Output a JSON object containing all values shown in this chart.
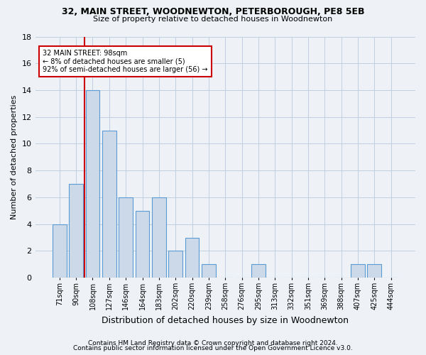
{
  "title_line1": "32, MAIN STREET, WOODNEWTON, PETERBOROUGH, PE8 5EB",
  "title_line2": "Size of property relative to detached houses in Woodnewton",
  "xlabel": "Distribution of detached houses by size in Woodnewton",
  "ylabel": "Number of detached properties",
  "categories": [
    "71sqm",
    "90sqm",
    "108sqm",
    "127sqm",
    "146sqm",
    "164sqm",
    "183sqm",
    "202sqm",
    "220sqm",
    "239sqm",
    "258sqm",
    "276sqm",
    "295sqm",
    "313sqm",
    "332sqm",
    "351sqm",
    "369sqm",
    "388sqm",
    "407sqm",
    "425sqm",
    "444sqm"
  ],
  "values": [
    4,
    7,
    14,
    11,
    6,
    5,
    6,
    2,
    3,
    1,
    0,
    0,
    1,
    0,
    0,
    0,
    0,
    0,
    1,
    1,
    0
  ],
  "bar_color": "#ccd9e8",
  "bar_edgecolor": "#5b9bd5",
  "annotation_line1": "32 MAIN STREET: 98sqm",
  "annotation_line2": "← 8% of detached houses are smaller (5)",
  "annotation_line3": "92% of semi-detached houses are larger (56) →",
  "annotation_box_color": "white",
  "annotation_box_edgecolor": "#cc0000",
  "vline_color": "#cc0000",
  "vline_x": 2,
  "ylim": [
    0,
    18
  ],
  "yticks": [
    0,
    2,
    4,
    6,
    8,
    10,
    12,
    14,
    16,
    18
  ],
  "footer_line1": "Contains HM Land Registry data © Crown copyright and database right 2024.",
  "footer_line2": "Contains public sector information licensed under the Open Government Licence v3.0.",
  "background_color": "#eef2f7",
  "grid_color": "#c0cfe0",
  "title_fontsize": 9,
  "subtitle_fontsize": 8,
  "ylabel_fontsize": 8,
  "xlabel_fontsize": 9,
  "tick_fontsize": 7,
  "footer_fontsize": 6.5
}
